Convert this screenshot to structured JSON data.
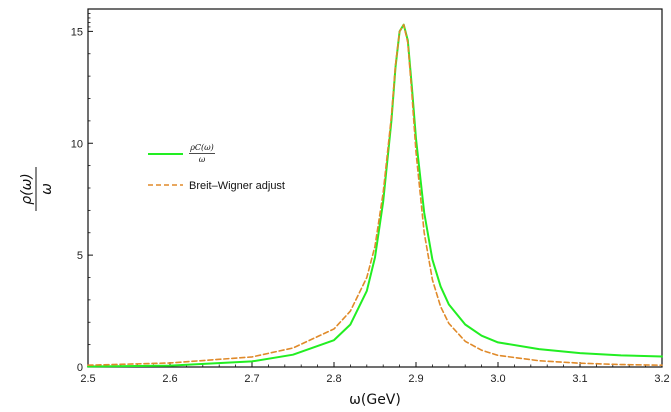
{
  "chart_data": {
    "type": "line",
    "xlabel": "ω(GeV)",
    "ylabel_numerator": "ρ(ω)",
    "ylabel_denominator": "ω",
    "xlim": [
      2.5,
      3.2
    ],
    "ylim": [
      0,
      16
    ],
    "xticks": [
      "2.5",
      "2.6",
      "2.7",
      "2.8",
      "2.9",
      "3.0",
      "3.1",
      "3.2"
    ],
    "yticks": [
      "0",
      "5",
      "10",
      "15"
    ],
    "grid": false,
    "legend_position": "left-middle",
    "series": [
      {
        "name": "ρ_C(ω) / ω",
        "legend_numerator": "ρC(ω)",
        "legend_denominator": "ω",
        "color": "#22ee22",
        "style": "solid",
        "x": [
          2.5,
          2.6,
          2.7,
          2.75,
          2.8,
          2.82,
          2.84,
          2.85,
          2.86,
          2.87,
          2.875,
          2.88,
          2.885,
          2.89,
          2.895,
          2.9,
          2.91,
          2.92,
          2.93,
          2.94,
          2.96,
          2.98,
          3.0,
          3.05,
          3.1,
          3.15,
          3.2
        ],
        "y": [
          0.02,
          0.06,
          0.25,
          0.55,
          1.2,
          1.9,
          3.4,
          4.9,
          7.4,
          11.0,
          13.4,
          15.0,
          15.3,
          14.6,
          12.5,
          10.2,
          6.9,
          4.8,
          3.6,
          2.8,
          1.9,
          1.4,
          1.1,
          0.8,
          0.62,
          0.52,
          0.47
        ]
      },
      {
        "name": "Breit–Wigner adjust",
        "color": "#e08a2a",
        "style": "dashed",
        "x": [
          2.5,
          2.6,
          2.7,
          2.75,
          2.8,
          2.82,
          2.84,
          2.85,
          2.86,
          2.87,
          2.875,
          2.88,
          2.885,
          2.89,
          2.895,
          2.9,
          2.91,
          2.92,
          2.93,
          2.94,
          2.96,
          2.98,
          3.0,
          3.05,
          3.1,
          3.15,
          3.2
        ],
        "y": [
          0.08,
          0.18,
          0.45,
          0.85,
          1.7,
          2.5,
          4.0,
          5.4,
          7.8,
          11.2,
          13.5,
          15.0,
          15.3,
          14.5,
          12.2,
          9.6,
          6.0,
          3.9,
          2.7,
          1.95,
          1.15,
          0.75,
          0.52,
          0.28,
          0.17,
          0.11,
          0.08
        ]
      }
    ]
  }
}
